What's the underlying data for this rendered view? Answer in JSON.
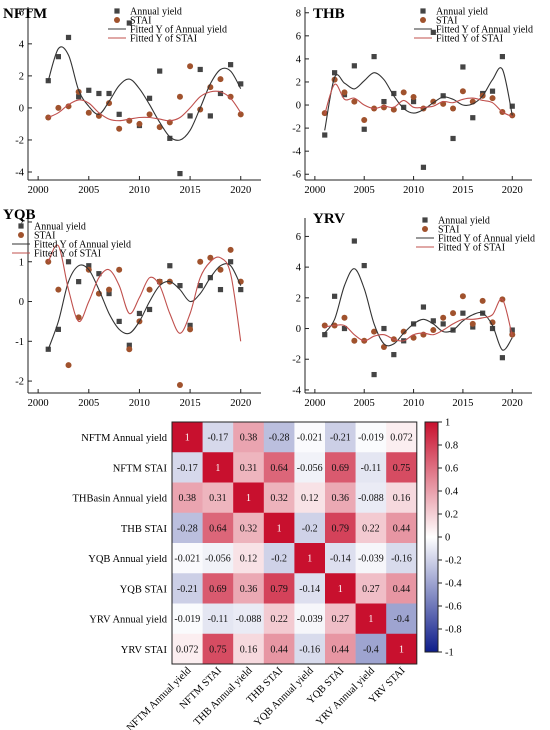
{
  "chart_data": [
    {
      "type": "scatter",
      "title": "NFTM",
      "x": [
        2001,
        2002,
        2003,
        2004,
        2005,
        2006,
        2007,
        2008,
        2009,
        2010,
        2011,
        2012,
        2013,
        2014,
        2015,
        2016,
        2017,
        2018,
        2019,
        2020
      ],
      "xlim": [
        1999,
        2022
      ],
      "ylim": [
        -4.5,
        6.3
      ],
      "xticks": [
        2000,
        2005,
        2010,
        2015,
        2020
      ],
      "yticks": [
        -4,
        -2,
        0,
        2,
        4,
        6
      ],
      "series": [
        {
          "name": "Annual yield",
          "values": [
            1.7,
            3.2,
            4.4,
            0.7,
            1.1,
            0.9,
            0.9,
            -0.4,
            5.3,
            -1.1,
            0.6,
            2.3,
            -1.9,
            -4.1,
            -0.5,
            2.4,
            -0.5,
            0.9,
            2.7,
            1.5
          ],
          "marker": "square",
          "color": "#444444"
        },
        {
          "name": "STAI",
          "values": [
            -0.6,
            0.0,
            0.1,
            1.0,
            -0.3,
            -0.5,
            0.3,
            -1.3,
            -0.8,
            -1.0,
            -0.4,
            -1.2,
            -0.9,
            0.7,
            2.6,
            -0.1,
            1.3,
            1.8,
            0.7,
            -0.4
          ],
          "marker": "circle",
          "color": "#a0522d"
        },
        {
          "name": "Fitted Y of Annual yield",
          "values": [
            1.7,
            3.7,
            3.3,
            1.1,
            0.1,
            -0.4,
            0.4,
            1.4,
            1.8,
            1.2,
            0.2,
            -0.9,
            -1.8,
            -2.0,
            -1.4,
            0.0,
            1.5,
            2.4,
            2.3,
            1.2
          ],
          "line": true,
          "color": "#333333"
        },
        {
          "name": "Fitted Y of STAI",
          "values": [
            -0.6,
            -0.3,
            0.2,
            0.5,
            0.3,
            -0.3,
            -0.7,
            -0.8,
            -0.7,
            -0.6,
            -0.6,
            -0.7,
            -0.8,
            -0.6,
            0.0,
            0.7,
            1.0,
            1.0,
            0.6,
            -0.3
          ],
          "line": true,
          "color": "#c0504d"
        }
      ]
    },
    {
      "type": "scatter",
      "title": "THB",
      "x": [
        2001,
        2002,
        2003,
        2004,
        2005,
        2006,
        2007,
        2008,
        2009,
        2010,
        2011,
        2012,
        2013,
        2014,
        2015,
        2016,
        2017,
        2018,
        2019,
        2020
      ],
      "xlim": [
        1999,
        2022
      ],
      "ylim": [
        -6.5,
        8.5
      ],
      "xticks": [
        2000,
        2005,
        2010,
        2015,
        2020
      ],
      "yticks": [
        -6,
        -4,
        -2,
        0,
        2,
        4,
        6,
        8
      ],
      "series": [
        {
          "name": "Annual yield",
          "values": [
            -2.6,
            2.8,
            0.9,
            3.4,
            -2.1,
            4.2,
            0.3,
            1.0,
            -0.2,
            0.3,
            -5.4,
            6.3,
            0.8,
            -2.9,
            3.3,
            -1.1,
            1.0,
            1.2,
            4.2,
            -0.1
          ],
          "marker": "square",
          "color": "#444444"
        },
        {
          "name": "STAI",
          "values": [
            -0.7,
            2.2,
            1.1,
            0.3,
            -1.3,
            -0.3,
            -0.2,
            -0.4,
            1.1,
            0.7,
            -0.3,
            0.3,
            0.1,
            -0.3,
            1.2,
            0.3,
            0.8,
            0.6,
            -0.6,
            -0.9
          ],
          "marker": "circle",
          "color": "#a0522d"
        },
        {
          "name": "Fitted Y of Annual yield",
          "values": [
            -2.2,
            2.4,
            1.9,
            1.4,
            2.1,
            2.8,
            2.2,
            0.8,
            -0.3,
            -0.7,
            -0.4,
            0.2,
            0.7,
            0.5,
            0.0,
            0.1,
            0.8,
            2.2,
            3.1,
            -0.9
          ],
          "line": true,
          "color": "#333333"
        },
        {
          "name": "Fitted Y of STAI",
          "values": [
            -0.8,
            1.8,
            0.5,
            0.6,
            0.0,
            -0.3,
            -0.1,
            -0.2,
            0.4,
            -0.2,
            -0.2,
            -0.1,
            0.3,
            0.2,
            0.5,
            0.6,
            0.4,
            0.2,
            -0.6,
            -1.0
          ],
          "line": true,
          "color": "#c0504d"
        }
      ]
    },
    {
      "type": "scatter",
      "title": "YQB",
      "x": [
        2001,
        2002,
        2003,
        2004,
        2005,
        2006,
        2007,
        2008,
        2009,
        2010,
        2011,
        2012,
        2013,
        2014,
        2015,
        2016,
        2017,
        2018,
        2019,
        2020
      ],
      "xlim": [
        1999,
        2022
      ],
      "ylim": [
        -2.3,
        2.1
      ],
      "xticks": [
        2000,
        2005,
        2010,
        2015,
        2020
      ],
      "yticks": [
        -2,
        -1,
        0,
        1,
        2
      ],
      "series": [
        {
          "name": "Annual yield",
          "values": [
            -1.2,
            -0.7,
            1.0,
            0.5,
            0.9,
            0.7,
            0.2,
            -0.5,
            -1.1,
            -0.3,
            -0.2,
            0.5,
            0.9,
            0.4,
            -0.6,
            0.4,
            0.6,
            0.3,
            1.0,
            0.3
          ],
          "marker": "square",
          "color": "#444444"
        },
        {
          "name": "STAI",
          "values": [
            1.0,
            0.3,
            -1.6,
            -0.4,
            0.8,
            0.2,
            0.3,
            0.8,
            -1.2,
            -0.5,
            0.3,
            0.5,
            0.5,
            -2.1,
            -0.7,
            1.0,
            1.1,
            0.8,
            1.3,
            0.5
          ],
          "marker": "circle",
          "color": "#a0522d"
        },
        {
          "name": "Fitted Y of Annual yield",
          "values": [
            -1.2,
            -0.5,
            0.5,
            0.9,
            0.8,
            0.3,
            -0.3,
            -0.7,
            -0.8,
            -0.5,
            0.0,
            0.4,
            0.5,
            0.3,
            0.0,
            0.2,
            0.6,
            0.9,
            0.9,
            0.4
          ],
          "line": true,
          "color": "#333333"
        },
        {
          "name": "Fitted Y of STAI",
          "values": [
            1.0,
            1.4,
            0.3,
            -0.5,
            0.0,
            0.6,
            0.8,
            0.4,
            -0.3,
            0.1,
            0.6,
            0.4,
            -0.3,
            -0.8,
            -0.3,
            0.6,
            1.0,
            1.1,
            0.7,
            -1.0
          ],
          "line": true,
          "color": "#c0504d"
        }
      ]
    },
    {
      "type": "scatter",
      "title": "YRV",
      "x": [
        2001,
        2002,
        2003,
        2004,
        2005,
        2006,
        2007,
        2008,
        2009,
        2010,
        2011,
        2012,
        2013,
        2014,
        2015,
        2016,
        2017,
        2018,
        2019,
        2020
      ],
      "xlim": [
        1999,
        2022
      ],
      "ylim": [
        -4.2,
        7.2
      ],
      "xticks": [
        2000,
        2005,
        2010,
        2015,
        2020
      ],
      "yticks": [
        -4,
        -2,
        0,
        2,
        4,
        6
      ],
      "series": [
        {
          "name": "Annual yield",
          "values": [
            -0.4,
            2.1,
            0.0,
            5.7,
            4.1,
            -3.0,
            0.0,
            -1.7,
            -0.8,
            0.3,
            1.4,
            0.5,
            0.3,
            -0.1,
            1.0,
            0.1,
            1.0,
            0.0,
            -1.9,
            -0.1
          ],
          "marker": "square",
          "color": "#444444"
        },
        {
          "name": "STAI",
          "values": [
            0.2,
            0.2,
            0.7,
            -0.8,
            -0.8,
            -0.2,
            -1.2,
            -0.7,
            -0.2,
            -0.6,
            -0.4,
            -0.1,
            0.7,
            1.0,
            2.1,
            0.3,
            1.8,
            0.4,
            1.9,
            -0.4
          ],
          "marker": "circle",
          "color": "#a0522d"
        },
        {
          "name": "Fitted Y of Annual yield",
          "values": [
            -0.3,
            0.6,
            2.8,
            3.9,
            2.6,
            0.3,
            -1.0,
            -1.0,
            -0.3,
            0.3,
            0.6,
            0.3,
            -0.2,
            -0.1,
            0.5,
            0.9,
            1.0,
            0.2,
            -1.4,
            -0.6
          ],
          "line": true,
          "color": "#333333"
        },
        {
          "name": "Fitted Y of STAI",
          "values": [
            0.1,
            0.2,
            0.2,
            -0.4,
            -0.8,
            -0.5,
            -0.4,
            -0.7,
            -0.8,
            -0.4,
            -0.3,
            -0.4,
            -0.1,
            0.3,
            0.6,
            0.6,
            0.7,
            0.9,
            1.9,
            -0.5
          ],
          "line": true,
          "color": "#c0504d"
        }
      ]
    },
    {
      "type": "heatmap",
      "labels": [
        "NFTM Annual yield",
        "NFTM STAI",
        "THBasin Annual  yield",
        "THB STAI",
        "YQB Annual yield",
        "YQB STAI",
        "YRV Annual yield",
        "YRV STAI"
      ],
      "xlabels": [
        "NFTM Annual yield",
        "NFTM STAI",
        "THB Annual  yield",
        "THB STAI",
        "YQB Annual yield",
        "YQB STAI",
        "YRV Annual yield",
        "YRV STAI"
      ],
      "matrix": [
        [
          1,
          -0.17,
          0.38,
          -0.28,
          -0.021,
          -0.21,
          -0.019,
          0.072
        ],
        [
          -0.17,
          1,
          0.31,
          0.64,
          -0.056,
          0.69,
          -0.11,
          0.75
        ],
        [
          0.38,
          0.31,
          1,
          0.32,
          0.12,
          0.36,
          -0.088,
          0.16
        ],
        [
          -0.28,
          0.64,
          0.32,
          1,
          -0.2,
          0.79,
          0.22,
          0.44
        ],
        [
          -0.021,
          -0.056,
          0.12,
          -0.2,
          1,
          -0.14,
          -0.039,
          -0.16
        ],
        [
          -0.21,
          0.69,
          0.36,
          0.79,
          -0.14,
          1,
          0.27,
          0.44
        ],
        [
          -0.019,
          -0.11,
          -0.088,
          0.22,
          -0.039,
          0.27,
          1,
          -0.4
        ],
        [
          0.072,
          0.75,
          0.16,
          0.44,
          -0.16,
          0.44,
          -0.4,
          1
        ]
      ],
      "colorbar": {
        "range": [
          -1,
          1
        ],
        "ticks": [
          1,
          0.8,
          0.6,
          0.4,
          0.2,
          0,
          -0.2,
          -0.4,
          -0.6,
          -0.8,
          -1
        ],
        "low_color": "#0d1c8a",
        "mid_color": "#ffffff",
        "high_color": "#c8102e"
      }
    }
  ]
}
